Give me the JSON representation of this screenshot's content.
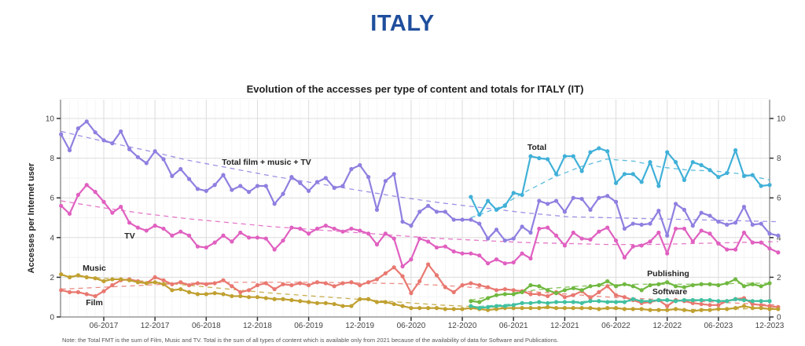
{
  "page": {
    "title": "ITALY",
    "note": "Note: the Total FMT is the sum of Film, Music and TV. Total is the sum of all types of content which is available only from 2021 because of the availability of data for Software and Publications."
  },
  "chart_data": {
    "type": "line",
    "title": "Evolution of the accesses per type of content and totals for ITALY (IT)",
    "xlabel": "",
    "ylabel": "Accesses per Internet user",
    "ylim": [
      0,
      11
    ],
    "y_ticks": [
      0,
      2,
      4,
      6,
      8,
      10
    ],
    "y_tick_labels": [
      "0",
      "2",
      "4",
      "6",
      "8",
      "10"
    ],
    "x_start": "01-2017",
    "x_end": "12-2023",
    "x_ticks": [
      "06-2017",
      "12-2017",
      "06-2018",
      "12-2018",
      "06-2019",
      "12-2019",
      "06-2020",
      "12-2020",
      "06-2021",
      "12-2021",
      "06-2022",
      "12-2022",
      "06-2023",
      "12-2023"
    ],
    "grid": true,
    "trend_lines": "dashed",
    "series": [
      {
        "name": "Total film + music + TV",
        "label": "Total film + music + TV",
        "color": "#8f7fe0",
        "start_month": 0,
        "values": [
          9.2,
          8.4,
          9.5,
          9.85,
          9.3,
          8.9,
          8.75,
          9.35,
          8.45,
          8.05,
          7.75,
          8.35,
          7.95,
          7.1,
          7.45,
          6.95,
          6.45,
          6.35,
          6.65,
          7.15,
          6.4,
          6.6,
          6.3,
          6.6,
          6.6,
          5.7,
          6.2,
          7.05,
          6.75,
          6.35,
          6.8,
          7.0,
          6.5,
          6.6,
          7.45,
          7.65,
          7.05,
          5.4,
          6.85,
          7.2,
          4.8,
          4.6,
          5.3,
          5.6,
          5.3,
          5.3,
          4.9,
          4.9,
          4.9,
          4.7,
          3.95,
          4.4,
          3.85,
          3.95,
          4.55,
          4.25,
          5.85,
          5.7,
          5.85,
          5.3,
          6.0,
          5.95,
          5.4,
          6.0,
          6.1,
          5.8,
          4.45,
          4.7,
          4.65,
          4.7,
          5.35,
          4.1,
          5.7,
          5.4,
          4.6,
          5.25,
          5.1,
          4.8,
          4.65,
          4.75,
          5.55,
          4.65,
          4.7,
          4.2,
          4.1
        ],
        "trend": [
          9.35,
          8.85,
          8.4,
          7.9,
          7.5,
          7.1,
          6.75,
          6.4,
          6.05,
          5.75,
          5.5,
          5.25,
          5.05,
          5.0,
          4.95,
          4.9,
          4.85,
          4.8
        ]
      },
      {
        "name": "TV",
        "label": "TV",
        "color": "#e060c0",
        "start_month": 0,
        "values": [
          5.6,
          5.2,
          6.15,
          6.65,
          6.3,
          5.8,
          5.25,
          5.55,
          4.75,
          4.5,
          4.35,
          4.6,
          4.45,
          4.1,
          4.3,
          4.1,
          3.55,
          3.5,
          3.75,
          4.1,
          3.8,
          4.25,
          4.0,
          4.0,
          3.95,
          3.4,
          3.85,
          4.5,
          4.45,
          4.2,
          4.45,
          4.6,
          4.45,
          4.3,
          4.45,
          4.35,
          4.2,
          3.65,
          4.2,
          3.95,
          2.55,
          2.9,
          3.95,
          3.8,
          3.5,
          3.55,
          3.3,
          3.2,
          3.2,
          3.1,
          2.7,
          2.9,
          2.7,
          2.75,
          3.2,
          2.95,
          4.45,
          4.5,
          4.1,
          3.6,
          4.25,
          3.95,
          3.9,
          4.3,
          4.5,
          3.85,
          3.0,
          3.55,
          3.6,
          3.8,
          4.25,
          3.2,
          4.45,
          4.45,
          3.8,
          4.35,
          4.2,
          3.7,
          3.4,
          3.4,
          4.25,
          3.75,
          3.75,
          3.45,
          3.25
        ],
        "trend": [
          5.85,
          5.5,
          5.2,
          4.95,
          4.75,
          4.55,
          4.4,
          4.25,
          4.1,
          3.95,
          3.85,
          3.75,
          3.7,
          3.65,
          3.65,
          3.7,
          3.75,
          3.8
        ]
      },
      {
        "name": "Film",
        "label": "Film",
        "color": "#e87870",
        "start_month": 0,
        "values": [
          1.35,
          1.25,
          1.25,
          1.15,
          1.05,
          1.3,
          1.6,
          1.85,
          1.9,
          1.8,
          1.7,
          2.0,
          1.85,
          1.65,
          1.75,
          1.6,
          1.7,
          1.65,
          1.7,
          1.85,
          1.55,
          1.25,
          1.35,
          1.6,
          1.7,
          1.4,
          1.65,
          1.6,
          1.7,
          1.6,
          1.75,
          1.7,
          1.55,
          1.7,
          1.75,
          1.6,
          1.75,
          1.9,
          2.2,
          2.5,
          2.05,
          1.2,
          1.8,
          2.65,
          2.1,
          1.5,
          1.25,
          1.6,
          1.7,
          1.6,
          1.5,
          1.35,
          1.4,
          1.35,
          1.3,
          1.15,
          1.15,
          1.05,
          1.25,
          1.0,
          1.1,
          1.3,
          0.95,
          1.25,
          1.55,
          1.1,
          1.0,
          0.85,
          0.7,
          0.75,
          0.85,
          0.55,
          0.85,
          0.8,
          0.7,
          0.65,
          0.6,
          0.6,
          0.8,
          0.9,
          0.95,
          0.65,
          0.6,
          0.55,
          0.5
        ],
        "trend": [
          1.4,
          1.5,
          1.6,
          1.7,
          1.75,
          1.75,
          1.75,
          1.72,
          1.68,
          1.6,
          1.45,
          1.3,
          1.15,
          1.0,
          0.9,
          0.8,
          0.7,
          0.6
        ]
      },
      {
        "name": "Music",
        "label": "Music",
        "color": "#c0a030",
        "start_month": 0,
        "values": [
          2.15,
          2.0,
          2.1,
          2.0,
          1.95,
          1.8,
          1.9,
          1.9,
          1.85,
          1.75,
          1.7,
          1.75,
          1.65,
          1.35,
          1.4,
          1.25,
          1.15,
          1.15,
          1.2,
          1.15,
          1.05,
          1.05,
          1.0,
          1.0,
          0.95,
          0.9,
          0.9,
          0.85,
          0.8,
          0.75,
          0.7,
          0.7,
          0.65,
          0.55,
          0.55,
          0.9,
          0.9,
          0.75,
          0.75,
          0.65,
          0.55,
          0.45,
          0.45,
          0.45,
          0.45,
          0.4,
          0.4,
          0.4,
          0.45,
          0.4,
          0.35,
          0.4,
          0.45,
          0.45,
          0.45,
          0.45,
          0.45,
          0.5,
          0.45,
          0.45,
          0.45,
          0.45,
          0.45,
          0.4,
          0.45,
          0.45,
          0.4,
          0.4,
          0.4,
          0.35,
          0.35,
          0.35,
          0.4,
          0.35,
          0.3,
          0.35,
          0.35,
          0.4,
          0.4,
          0.45,
          0.55,
          0.45,
          0.45,
          0.4,
          0.4
        ],
        "trend": [
          2.1,
          1.95,
          1.8,
          1.6,
          1.4,
          1.2,
          1.05,
          0.9,
          0.75,
          0.6,
          0.5,
          0.45,
          0.42,
          0.4,
          0.38,
          0.38,
          0.4,
          0.45
        ]
      },
      {
        "name": "Total",
        "label": "Total",
        "color": "#40b0d8",
        "start_month": 48,
        "values": [
          6.05,
          5.15,
          5.85,
          5.4,
          5.6,
          6.25,
          6.15,
          8.1,
          8.0,
          7.95,
          7.2,
          8.1,
          8.1,
          7.35,
          8.3,
          8.5,
          8.35,
          6.75,
          7.2,
          7.2,
          6.8,
          7.8,
          6.6,
          8.3,
          7.8,
          6.9,
          7.8,
          7.65,
          7.4,
          7.05,
          7.25,
          8.4,
          7.1,
          7.15,
          6.6,
          6.65
        ],
        "trend": [
          5.0,
          5.5,
          6.3,
          7.0,
          7.55,
          7.95,
          7.85,
          7.55,
          7.4,
          7.35,
          7.2,
          6.9
        ]
      },
      {
        "name": "Publishing",
        "label": "Publishing",
        "color": "#70b840",
        "start_month": 48,
        "values": [
          0.8,
          0.75,
          0.95,
          1.1,
          1.15,
          1.15,
          1.25,
          1.6,
          1.55,
          1.35,
          1.2,
          1.35,
          1.45,
          1.35,
          1.55,
          1.6,
          1.8,
          1.55,
          1.65,
          1.55,
          1.35,
          1.6,
          1.65,
          1.75,
          1.55,
          1.5,
          1.6,
          1.65,
          1.65,
          1.6,
          1.7,
          1.9,
          1.55,
          1.65,
          1.55,
          1.7
        ],
        "trend": [
          0.85,
          1.1,
          1.3,
          1.45,
          1.55,
          1.6,
          1.65,
          1.65,
          1.65,
          1.65,
          1.7,
          1.7
        ]
      },
      {
        "name": "Software",
        "label": "Software",
        "color": "#40c0a0",
        "start_month": 48,
        "values": [
          0.55,
          0.45,
          0.5,
          0.55,
          0.55,
          0.6,
          0.7,
          0.7,
          0.75,
          0.7,
          0.75,
          0.75,
          0.75,
          0.7,
          0.8,
          0.8,
          0.75,
          0.75,
          0.75,
          0.9,
          0.8,
          0.8,
          0.85,
          0.85,
          0.8,
          0.85,
          0.85,
          0.85,
          0.85,
          0.8,
          0.8,
          0.9,
          0.85,
          0.8,
          0.8,
          0.8
        ],
        "trend": [
          0.5,
          0.6,
          0.7,
          0.75,
          0.78,
          0.8,
          0.8,
          0.82,
          0.82,
          0.83,
          0.83,
          0.83
        ]
      }
    ]
  }
}
